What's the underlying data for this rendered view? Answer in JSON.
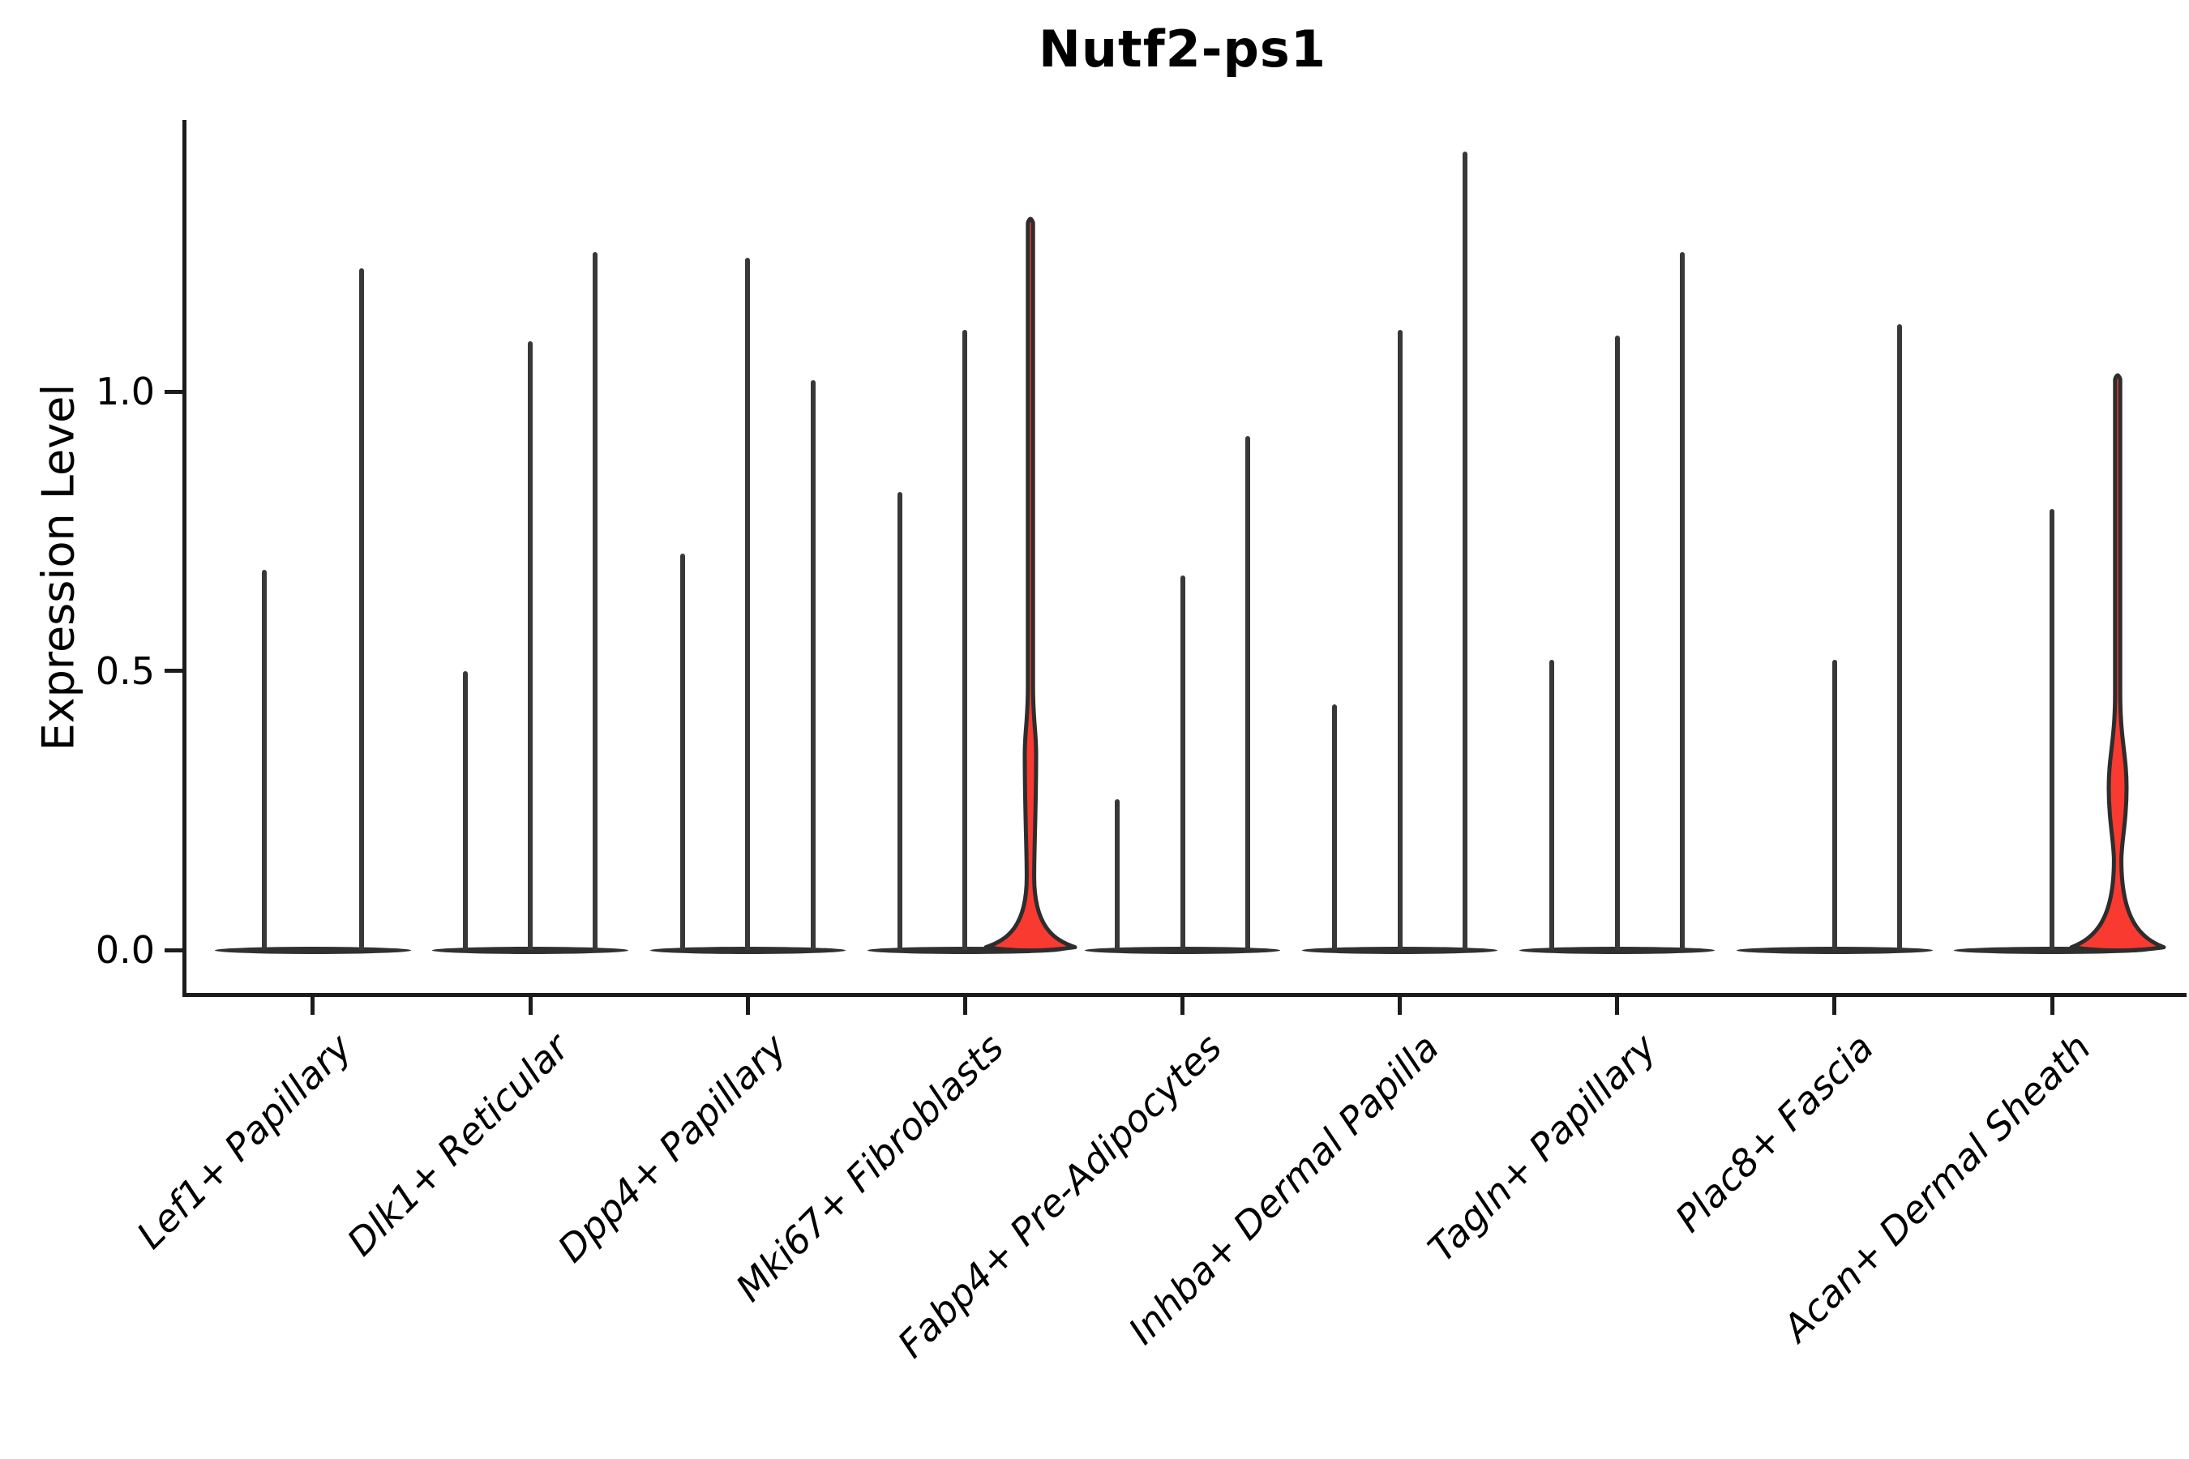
{
  "chart_data": {
    "type": "violin",
    "title": "Nutf2-ps1",
    "ylabel": "Expression Level",
    "xlabel": "",
    "ytick_labels": [
      "0.0",
      "0.5",
      "1.0"
    ],
    "ytick_values": [
      0.0,
      0.5,
      1.0
    ],
    "ylim": [
      0,
      1.49
    ],
    "grid": false,
    "legend": "none",
    "colors": {
      "violin_line": "#383838",
      "violin_outline": "#2d2d2d",
      "highlight_fill": "#f93a31",
      "axis": "#1c1c1c",
      "text": "#000000",
      "background": "#ffffff"
    },
    "categories": [
      "Lef1+ Papillary",
      "Dlk1+ Reticular",
      "Dpp4+ Papillary",
      "Mki67+ Fibroblasts",
      "Fabp4+ Pre-Adipocytes",
      "Inhba+ Dermal Papilla",
      "Tagln+ Papillary",
      "Plac8+ Fascia",
      "Acan+ Dermal Sheath"
    ],
    "violins": [
      [
        {
          "shape": "spike",
          "max": 0.68
        },
        {
          "shape": "spike",
          "max": 1.22
        }
      ],
      [
        {
          "shape": "spike",
          "max": 0.5
        },
        {
          "shape": "spike",
          "max": 1.09
        },
        {
          "shape": "spike",
          "max": 1.25
        }
      ],
      [
        {
          "shape": "spike",
          "max": 0.71
        },
        {
          "shape": "spike",
          "max": 1.24
        },
        {
          "shape": "spike",
          "max": 1.02
        }
      ],
      [
        {
          "shape": "spike",
          "max": 0.82
        },
        {
          "shape": "spike",
          "max": 1.11
        },
        {
          "shape": "kde",
          "max": 1.31,
          "fill": "#f93a31",
          "bulge_top": 0.47,
          "bulge_peak": 0.35,
          "bulge_halfwidth": 7,
          "waist": 0.13,
          "bell_halfwidth": 55
        }
      ],
      [
        {
          "shape": "spike",
          "max": 0.27
        },
        {
          "shape": "spike",
          "max": 0.67
        },
        {
          "shape": "spike",
          "max": 0.92
        }
      ],
      [
        {
          "shape": "spike",
          "max": 0.44
        },
        {
          "shape": "spike",
          "max": 1.11
        },
        {
          "shape": "spike",
          "max": 1.43
        }
      ],
      [
        {
          "shape": "spike",
          "max": 0.52
        },
        {
          "shape": "spike",
          "max": 1.1
        },
        {
          "shape": "spike",
          "max": 1.25
        }
      ],
      [
        {
          "shape": "flat",
          "max": 0.0
        },
        {
          "shape": "spike",
          "max": 0.52
        },
        {
          "shape": "spike",
          "max": 1.12
        }
      ],
      [
        {
          "shape": "flat",
          "max": 0.0
        },
        {
          "shape": "spike",
          "max": 0.79
        },
        {
          "shape": "kde",
          "max": 1.03,
          "fill": "#f93a31",
          "bulge_top": 0.46,
          "bulge_peak": 0.29,
          "bulge_halfwidth": 11,
          "waist": 0.16,
          "bell_halfwidth": 57
        }
      ]
    ]
  }
}
